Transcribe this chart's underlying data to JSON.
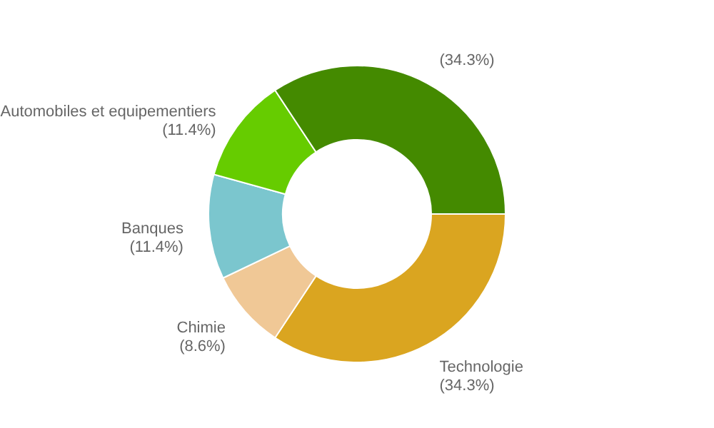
{
  "chart_data": {
    "type": "donut",
    "categories": [
      "Technologie",
      "Chimie",
      "Banques",
      "Automobiles et equipementiers",
      null
    ],
    "values": [
      34.3,
      8.6,
      11.4,
      11.4,
      34.3
    ],
    "colors": [
      "#daa520",
      "#f0c896",
      "#7bc6ce",
      "#66cc00",
      "#448a00"
    ],
    "value_labels": [
      "(34.3%)",
      "(8.6%)",
      "(11.4%)",
      "(11.4%)",
      "(34.3%)"
    ]
  }
}
